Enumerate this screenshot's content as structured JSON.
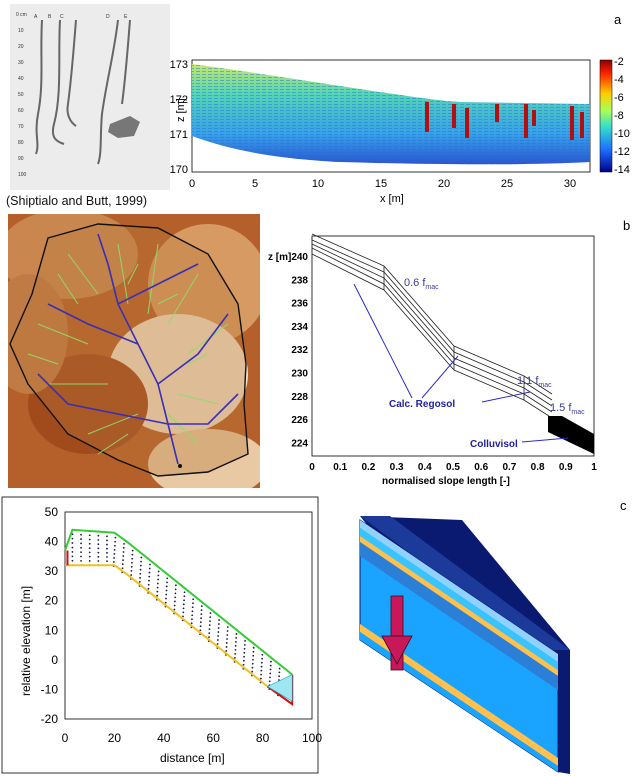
{
  "panel_labels": {
    "a": "a",
    "b": "b",
    "c": "c"
  },
  "caption_a": "(Shiptialo and Butt, 1999)",
  "photo": {
    "depth_header": "0 cm",
    "column_letters": [
      "A",
      "B",
      "C",
      "D",
      "E"
    ],
    "depth_ticks": [
      "10",
      "20",
      "30",
      "40",
      "50",
      "60",
      "70",
      "80",
      "90",
      "100"
    ]
  },
  "heatmap": {
    "ylabel": "z [m]",
    "xlabel": "x [m]",
    "y_ticks": [
      "173",
      "172",
      "171",
      "170"
    ],
    "x_ticks": [
      "0",
      "5",
      "10",
      "15",
      "20",
      "25",
      "30"
    ],
    "colorbar_ticks": [
      "-2",
      "-4",
      "-6",
      "-8",
      "-10",
      "-12",
      "-14"
    ]
  },
  "hillslope": {
    "ylabel": "z [m]",
    "xlabel": "normalised slope length [-]",
    "y_ticks": [
      "240",
      "238",
      "236",
      "234",
      "232",
      "230",
      "228",
      "226",
      "224"
    ],
    "x_ticks": [
      "0",
      "0.1",
      "0.2",
      "0.3",
      "0.4",
      "0.5",
      "0.6",
      "0.7",
      "0.8",
      "0.9",
      "1"
    ],
    "ann_06": "0.6 f",
    "ann_11": "1.1 f",
    "ann_15": "1.5 f",
    "ann_sub": "mac",
    "label_regosol": "Calc. Regosol",
    "label_colluvisol": "Colluvisol"
  },
  "chart_data": {
    "type": "line",
    "xlabel": "distance [m]",
    "ylabel": "relative elevation [m]",
    "xlim": [
      0,
      100
    ],
    "ylim": [
      -20,
      50
    ],
    "x_ticks": [
      "0",
      "20",
      "40",
      "60",
      "80",
      "100"
    ],
    "y_ticks": [
      "50",
      "40",
      "30",
      "20",
      "10",
      "0",
      "-10",
      "-20"
    ],
    "series": [
      {
        "color": "#33cc33",
        "x": [
          0,
          3,
          20,
          25,
          92
        ],
        "y": [
          37,
          44,
          43,
          40,
          -5
        ]
      },
      {
        "color": "#f0c020",
        "x": [
          0,
          3,
          20,
          25,
          82,
          92
        ],
        "y": [
          32,
          32,
          32,
          29,
          -9,
          -15
        ]
      }
    ]
  },
  "colors": {
    "arrow": "#c8185a",
    "layer_main": "#1aa3ff",
    "sand": "#ffc04d"
  }
}
